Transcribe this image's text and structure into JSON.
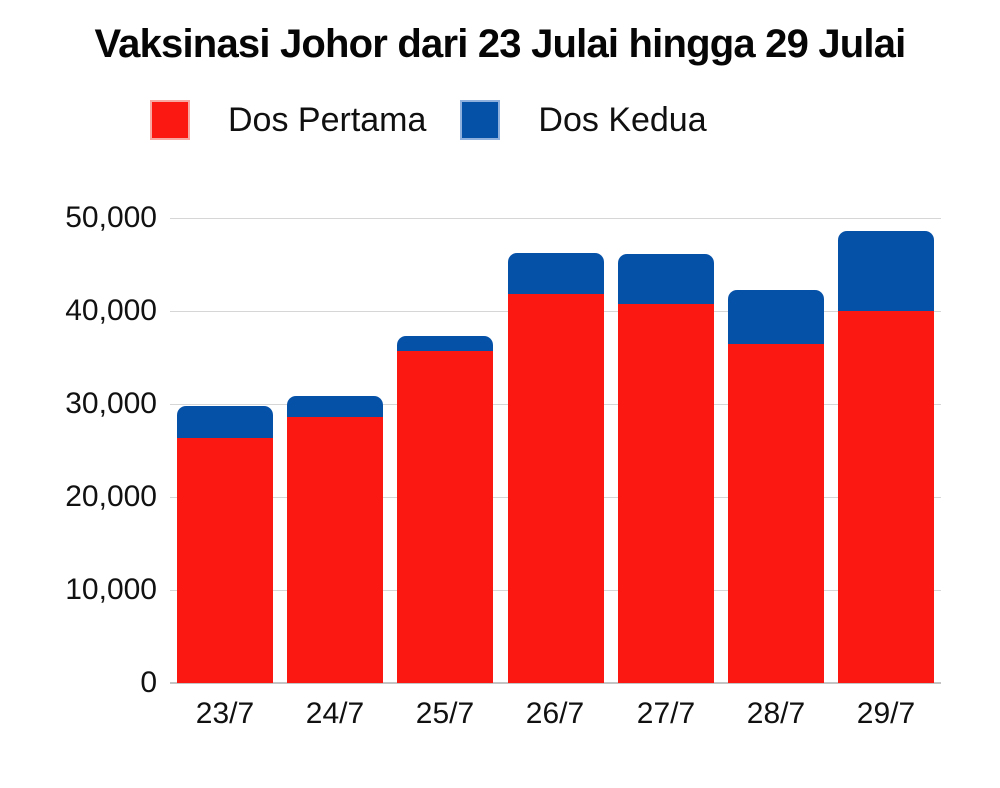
{
  "title": "Vaksinasi Johor dari 23 Julai hingga 29 Julai",
  "colors": {
    "dos_pertama": "#FB1813",
    "dos_kedua": "#0551A8",
    "legend_border_pertama": "#F7A8A3",
    "legend_border_kedua": "#8FB0DC",
    "gridline": "#D6D6D6",
    "axis_line": "#C4C4C4",
    "text": "#0B0B0B",
    "background": "#FFFFFF"
  },
  "legend": [
    {
      "label": "Dos Pertama",
      "color": "#FB1813",
      "border": "#F7A8A3"
    },
    {
      "label": "Dos Kedua",
      "color": "#0551A8",
      "border": "#8FB0DC"
    }
  ],
  "chart_data": {
    "type": "bar",
    "stacked": true,
    "title": "Vaksinasi Johor dari 23 Julai hingga 29 Julai",
    "categories": [
      "23/7",
      "24/7",
      "25/7",
      "26/7",
      "27/7",
      "28/7",
      "29/7"
    ],
    "series": [
      {
        "name": "Dos Pertama",
        "color": "#FB1813",
        "values": [
          26300,
          28600,
          35700,
          41800,
          40800,
          36400,
          40000
        ]
      },
      {
        "name": "Dos Kedua",
        "color": "#0551A8",
        "values": [
          3400,
          2300,
          1600,
          4400,
          5400,
          5800,
          8600
        ]
      }
    ],
    "totals": [
      29700,
      30900,
      37300,
      46200,
      46200,
      42200,
      48600
    ],
    "xlabel": "",
    "ylabel": "",
    "ylim": [
      0,
      50000
    ],
    "yticks": [
      0,
      10000,
      20000,
      30000,
      40000,
      50000
    ],
    "ytick_labels": [
      "0",
      "10,000",
      "20,000",
      "30,000",
      "40,000",
      "50,000"
    ],
    "grid": true,
    "legend_position": "top"
  }
}
